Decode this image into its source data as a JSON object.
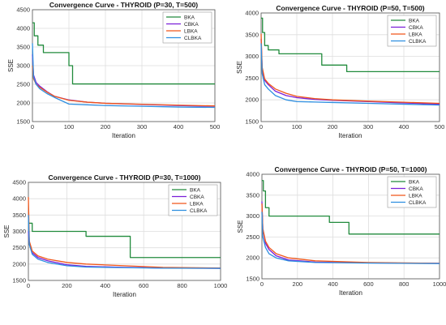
{
  "chart_data": [
    {
      "type": "line",
      "title": "Convergence Curve - THYROID (P=30, T=500)",
      "xlabel": "Iteration",
      "ylabel": "SSE",
      "xlim": [
        0,
        500
      ],
      "ylim": [
        1500,
        4500
      ],
      "xticks": [
        "0",
        "100",
        "200",
        "300",
        "400",
        "500"
      ],
      "yticks": [
        "1500",
        "2000",
        "2500",
        "3000",
        "3500",
        "4000",
        "4500"
      ],
      "grid": true,
      "legend_position": "top-right",
      "series": [
        {
          "name": "BKA",
          "color": "#218b3c",
          "x": [
            0,
            5,
            5,
            15,
            15,
            30,
            30,
            100,
            100,
            110,
            110,
            500
          ],
          "y": [
            4150,
            4150,
            3800,
            3800,
            3550,
            3550,
            3350,
            3350,
            3000,
            3000,
            2510,
            2510
          ]
        },
        {
          "name": "CBKA",
          "color": "#7a1fd8",
          "x": [
            0,
            3,
            10,
            20,
            40,
            60,
            100,
            150,
            200,
            300,
            400,
            500
          ],
          "y": [
            3300,
            2750,
            2550,
            2450,
            2300,
            2180,
            2080,
            2020,
            1990,
            1960,
            1930,
            1910
          ]
        },
        {
          "name": "LBKA",
          "color": "#f0561a",
          "x": [
            0,
            3,
            10,
            20,
            40,
            60,
            100,
            150,
            200,
            300,
            400,
            500
          ],
          "y": [
            3000,
            2650,
            2500,
            2420,
            2290,
            2180,
            2070,
            2020,
            1990,
            1965,
            1940,
            1920
          ]
        },
        {
          "name": "CLBKA",
          "color": "#2d8ee0",
          "x": [
            0,
            3,
            10,
            20,
            40,
            60,
            100,
            150,
            200,
            300,
            400,
            500
          ],
          "y": [
            3600,
            2700,
            2500,
            2380,
            2250,
            2150,
            1970,
            1950,
            1930,
            1910,
            1890,
            1880
          ]
        }
      ]
    },
    {
      "type": "line",
      "title": "Convergence Curve - THYROID (P=50, T=500)",
      "xlabel": "Iteration",
      "ylabel": "SSE",
      "xlim": [
        0,
        500
      ],
      "ylim": [
        1500,
        4000
      ],
      "xticks": [
        "0",
        "100",
        "200",
        "300",
        "400",
        "500"
      ],
      "yticks": [
        "1500",
        "2000",
        "2500",
        "3000",
        "3500",
        "4000"
      ],
      "grid": true,
      "legend_position": "top-right",
      "series": [
        {
          "name": "BKA",
          "color": "#218b3c",
          "x": [
            0,
            4,
            4,
            10,
            10,
            20,
            20,
            50,
            50,
            170,
            170,
            240,
            240,
            500
          ],
          "y": [
            3880,
            3880,
            3550,
            3550,
            3250,
            3250,
            3150,
            3150,
            3060,
            3060,
            2800,
            2800,
            2650,
            2650
          ]
        },
        {
          "name": "CBKA",
          "color": "#7a1fd8",
          "x": [
            0,
            3,
            10,
            20,
            40,
            70,
            100,
            150,
            200,
            300,
            400,
            500
          ],
          "y": [
            3400,
            2700,
            2450,
            2350,
            2200,
            2100,
            2050,
            2010,
            1990,
            1960,
            1930,
            1900
          ]
        },
        {
          "name": "LBKA",
          "color": "#f0561a",
          "x": [
            0,
            3,
            10,
            20,
            40,
            70,
            100,
            150,
            200,
            300,
            400,
            500
          ],
          "y": [
            3520,
            2750,
            2480,
            2380,
            2250,
            2150,
            2080,
            2030,
            2000,
            1970,
            1945,
            1920
          ]
        },
        {
          "name": "CLBKA",
          "color": "#2d8ee0",
          "x": [
            0,
            3,
            10,
            20,
            40,
            70,
            100,
            150,
            200,
            300,
            400,
            500
          ],
          "y": [
            3300,
            2600,
            2350,
            2250,
            2100,
            2000,
            1960,
            1950,
            1940,
            1920,
            1900,
            1880
          ]
        }
      ]
    },
    {
      "type": "line",
      "title": "Convergence Curve - THYROID (P=30, T=1000)",
      "xlabel": "Iteration",
      "ylabel": "SSE",
      "xlim": [
        0,
        1000
      ],
      "ylim": [
        1500,
        4500
      ],
      "xticks": [
        "0",
        "200",
        "400",
        "600",
        "800",
        "1000"
      ],
      "yticks": [
        "1500",
        "2000",
        "2500",
        "3000",
        "3500",
        "4000",
        "4500"
      ],
      "grid": true,
      "legend_position": "top-right",
      "series": [
        {
          "name": "BKA",
          "color": "#218b3c",
          "x": [
            0,
            20,
            20,
            300,
            300,
            530,
            530,
            1000
          ],
          "y": [
            3250,
            3250,
            3000,
            3000,
            2850,
            2850,
            2200,
            2200
          ]
        },
        {
          "name": "CBKA",
          "color": "#7a1fd8",
          "x": [
            0,
            5,
            20,
            50,
            100,
            200,
            300,
            500,
            700,
            1000
          ],
          "y": [
            3000,
            2600,
            2350,
            2200,
            2100,
            1980,
            1930,
            1900,
            1880,
            1870
          ]
        },
        {
          "name": "LBKA",
          "color": "#f0561a",
          "x": [
            0,
            5,
            20,
            50,
            100,
            200,
            300,
            500,
            700,
            1000
          ],
          "y": [
            4050,
            2700,
            2400,
            2250,
            2150,
            2050,
            2000,
            1950,
            1900,
            1880
          ]
        },
        {
          "name": "CLBKA",
          "color": "#2d8ee0",
          "x": [
            0,
            5,
            20,
            50,
            100,
            200,
            300,
            500,
            700,
            1000
          ],
          "y": [
            3500,
            2600,
            2300,
            2150,
            2050,
            1950,
            1910,
            1890,
            1875,
            1870
          ]
        }
      ]
    },
    {
      "type": "line",
      "title": "Convergence Curve - THYROID (P=50, T=1000)",
      "xlabel": "Iteration",
      "ylabel": "SSE",
      "xlim": [
        0,
        1000
      ],
      "ylim": [
        1500,
        4000
      ],
      "xticks": [
        "0",
        "200",
        "400",
        "600",
        "800",
        "1000"
      ],
      "yticks": [
        "1500",
        "2000",
        "2500",
        "3000",
        "3500",
        "4000"
      ],
      "grid": true,
      "legend_position": "top-right",
      "series": [
        {
          "name": "BKA",
          "color": "#218b3c",
          "x": [
            0,
            8,
            8,
            20,
            20,
            40,
            40,
            380,
            380,
            490,
            490,
            1000
          ],
          "y": [
            3850,
            3850,
            3600,
            3600,
            3200,
            3200,
            3000,
            3000,
            2850,
            2850,
            2570,
            2570
          ]
        },
        {
          "name": "CBKA",
          "color": "#7a1fd8",
          "x": [
            0,
            5,
            20,
            40,
            80,
            150,
            300,
            600,
            1000
          ],
          "y": [
            3350,
            2700,
            2350,
            2200,
            2050,
            1950,
            1900,
            1880,
            1870
          ]
        },
        {
          "name": "LBKA",
          "color": "#f0561a",
          "x": [
            0,
            5,
            20,
            40,
            80,
            150,
            300,
            600,
            1000
          ],
          "y": [
            3300,
            2700,
            2400,
            2250,
            2100,
            2000,
            1930,
            1890,
            1870
          ]
        },
        {
          "name": "CLBKA",
          "color": "#2d8ee0",
          "x": [
            0,
            5,
            20,
            40,
            80,
            150,
            300,
            600,
            1000
          ],
          "y": [
            3100,
            2500,
            2250,
            2100,
            2000,
            1930,
            1890,
            1875,
            1865
          ]
        }
      ]
    }
  ]
}
